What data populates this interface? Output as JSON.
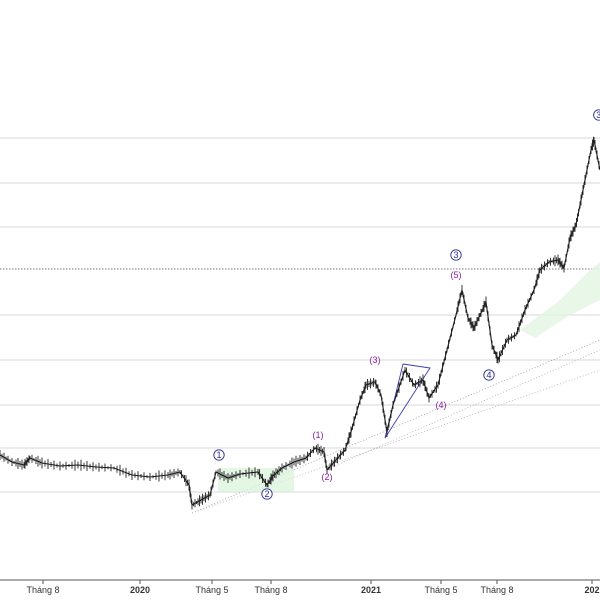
{
  "chart_data": {
    "type": "candlestick",
    "x_tick_labels": [
      {
        "text": "Tháng 8",
        "bold": false
      },
      {
        "text": "2020",
        "bold": true
      },
      {
        "text": "Tháng 5",
        "bold": false
      },
      {
        "text": "Tháng 8",
        "bold": false
      },
      {
        "text": "2021",
        "bold": true
      },
      {
        "text": "Tháng 5",
        "bold": false
      },
      {
        "text": "Tháng 8",
        "bold": false
      },
      {
        "text": "202",
        "bold": true
      }
    ],
    "horizontal_levels": 9,
    "dotted_level_index": 3,
    "series": [
      {
        "name": "",
        "values": [
          {
            "t": 0.0,
            "v": 455
          },
          {
            "t": 0.02,
            "v": 462
          },
          {
            "t": 0.04,
            "v": 465
          },
          {
            "t": 0.05,
            "v": 458
          },
          {
            "t": 0.07,
            "v": 463
          },
          {
            "t": 0.1,
            "v": 466
          },
          {
            "t": 0.13,
            "v": 465
          },
          {
            "t": 0.16,
            "v": 467
          },
          {
            "t": 0.19,
            "v": 468
          },
          {
            "t": 0.22,
            "v": 475
          },
          {
            "t": 0.25,
            "v": 477
          },
          {
            "t": 0.28,
            "v": 475
          },
          {
            "t": 0.3,
            "v": 472
          },
          {
            "t": 0.315,
            "v": 485
          },
          {
            "t": 0.32,
            "v": 505
          },
          {
            "t": 0.335,
            "v": 500
          },
          {
            "t": 0.35,
            "v": 495
          },
          {
            "t": 0.36,
            "v": 472
          },
          {
            "t": 0.38,
            "v": 478
          },
          {
            "t": 0.4,
            "v": 474
          },
          {
            "t": 0.43,
            "v": 472
          },
          {
            "t": 0.445,
            "v": 485
          },
          {
            "t": 0.455,
            "v": 476
          },
          {
            "t": 0.47,
            "v": 468
          },
          {
            "t": 0.49,
            "v": 462
          },
          {
            "t": 0.51,
            "v": 458
          },
          {
            "t": 0.525,
            "v": 448
          },
          {
            "t": 0.54,
            "v": 452
          },
          {
            "t": 0.545,
            "v": 470
          },
          {
            "t": 0.56,
            "v": 460
          },
          {
            "t": 0.575,
            "v": 450
          },
          {
            "t": 0.585,
            "v": 432
          },
          {
            "t": 0.6,
            "v": 400
          },
          {
            "t": 0.61,
            "v": 385
          },
          {
            "t": 0.625,
            "v": 382
          },
          {
            "t": 0.635,
            "v": 395
          },
          {
            "t": 0.645,
            "v": 432
          },
          {
            "t": 0.655,
            "v": 405
          },
          {
            "t": 0.675,
            "v": 370
          },
          {
            "t": 0.69,
            "v": 385
          },
          {
            "t": 0.705,
            "v": 380
          },
          {
            "t": 0.715,
            "v": 398
          },
          {
            "t": 0.73,
            "v": 385
          },
          {
            "t": 0.745,
            "v": 350
          },
          {
            "t": 0.76,
            "v": 315
          },
          {
            "t": 0.77,
            "v": 290
          },
          {
            "t": 0.78,
            "v": 318
          },
          {
            "t": 0.79,
            "v": 328
          },
          {
            "t": 0.8,
            "v": 315
          },
          {
            "t": 0.81,
            "v": 302
          },
          {
            "t": 0.82,
            "v": 345
          },
          {
            "t": 0.83,
            "v": 360
          },
          {
            "t": 0.845,
            "v": 340
          },
          {
            "t": 0.86,
            "v": 335
          },
          {
            "t": 0.875,
            "v": 310
          },
          {
            "t": 0.89,
            "v": 290
          },
          {
            "t": 0.9,
            "v": 270
          },
          {
            "t": 0.915,
            "v": 262
          },
          {
            "t": 0.93,
            "v": 260
          },
          {
            "t": 0.94,
            "v": 268
          },
          {
            "t": 0.95,
            "v": 238
          },
          {
            "t": 0.96,
            "v": 225
          },
          {
            "t": 0.965,
            "v": 210
          },
          {
            "t": 0.975,
            "v": 180
          },
          {
            "t": 0.985,
            "v": 150
          },
          {
            "t": 0.99,
            "v": 140
          },
          {
            "t": 1.0,
            "v": 170
          }
        ]
      }
    ],
    "wave_labels": [
      {
        "text": "①",
        "t": 0.365,
        "v": 458,
        "color": "blue"
      },
      {
        "text": "②",
        "t": 0.445,
        "v": 497,
        "color": "blue"
      },
      {
        "text": "(1)",
        "t": 0.53,
        "v": 438,
        "color": "purple"
      },
      {
        "text": "(2)",
        "t": 0.545,
        "v": 480,
        "color": "purple"
      },
      {
        "text": "(3)",
        "t": 0.625,
        "v": 363,
        "color": "purple"
      },
      {
        "text": "(4)",
        "t": 0.735,
        "v": 408,
        "color": "purple"
      },
      {
        "text": "③",
        "t": 0.76,
        "v": 258,
        "color": "blue"
      },
      {
        "text": "(5)",
        "t": 0.76,
        "v": 278,
        "color": "purple"
      },
      {
        "text": "④",
        "t": 0.815,
        "v": 378,
        "color": "blue"
      },
      {
        "text": "③",
        "t": 0.998,
        "v": 118,
        "color": "blue"
      }
    ],
    "legend": "none"
  }
}
